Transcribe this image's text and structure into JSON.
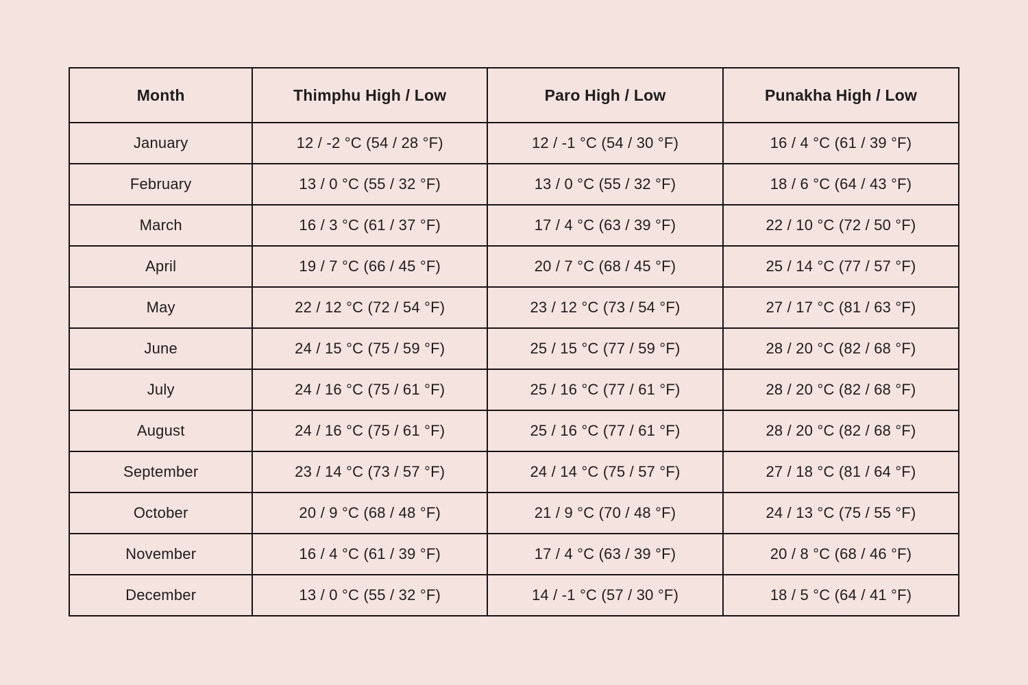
{
  "page": {
    "background_color": "#f5e3df",
    "border_color": "#151515",
    "text_color": "#1d1d1d"
  },
  "chart_data": {
    "type": "table",
    "columns": [
      "Month",
      "Thimphu High / Low",
      "Paro High / Low",
      "Punakha High / Low"
    ],
    "rows": [
      [
        "January",
        "12 / -2 °C (54 / 28 °F)",
        "12 / -1 °C (54 / 30 °F)",
        "16 / 4 °C (61 / 39 °F)"
      ],
      [
        "February",
        "13 / 0 °C (55 / 32 °F)",
        "13 / 0 °C (55 / 32 °F)",
        "18 / 6 °C (64 / 43 °F)"
      ],
      [
        "March",
        "16 / 3 °C (61 / 37 °F)",
        "17 / 4 °C (63 / 39 °F)",
        "22 / 10 °C (72 / 50 °F)"
      ],
      [
        "April",
        "19 / 7 °C (66 / 45 °F)",
        "20 / 7 °C (68 / 45 °F)",
        "25 / 14 °C (77 / 57 °F)"
      ],
      [
        "May",
        "22 / 12 °C (72 / 54 °F)",
        "23 / 12 °C (73 / 54 °F)",
        "27 / 17 °C (81 / 63 °F)"
      ],
      [
        "June",
        "24 / 15 °C (75 / 59 °F)",
        "25 / 15 °C (77 / 59 °F)",
        "28 / 20 °C (82 / 68 °F)"
      ],
      [
        "July",
        "24 / 16 °C (75 / 61 °F)",
        "25 / 16 °C (77 / 61 °F)",
        "28 / 20 °C (82 / 68 °F)"
      ],
      [
        "August",
        "24 / 16 °C (75 / 61 °F)",
        "25 / 16 °C (77 / 61 °F)",
        "28 / 20 °C (82 / 68 °F)"
      ],
      [
        "September",
        "23 / 14 °C (73 / 57 °F)",
        "24 / 14 °C (75 / 57 °F)",
        "27 / 18 °C (81 / 64 °F)"
      ],
      [
        "October",
        "20 / 9 °C (68 / 48 °F)",
        "21 / 9 °C (70 / 48 °F)",
        "24 / 13 °C (75 / 55 °F)"
      ],
      [
        "November",
        "16 / 4 °C (61 / 39 °F)",
        "17 / 4 °C (63 / 39 °F)",
        "20 / 8 °C (68 / 46 °F)"
      ],
      [
        "December",
        "13 / 0 °C (55 / 32 °F)",
        "14 / -1 °C (57 / 30 °F)",
        "18 / 5 °C (64 / 41 °F)"
      ]
    ]
  }
}
